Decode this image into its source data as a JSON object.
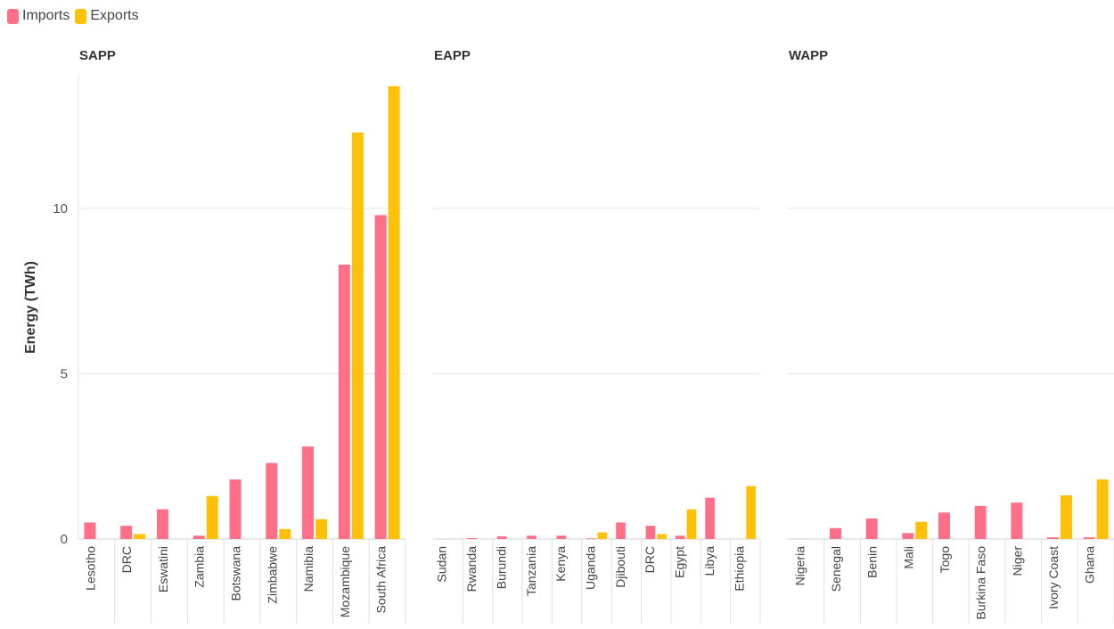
{
  "legend": {
    "imports_label": "Imports",
    "exports_label": "Exports"
  },
  "colors": {
    "imports": "#FF7088",
    "exports": "#FFC107",
    "grid": "#E6E6E6",
    "axis": "#D0D0D0"
  },
  "chart_data": {
    "type": "bar",
    "ylabel": "Energy (TWh)",
    "ylim": [
      0,
      14
    ],
    "yticks": [
      0,
      5,
      10
    ],
    "grid": true,
    "legend_position": "top-left",
    "series_names": [
      "Imports",
      "Exports"
    ],
    "panels": [
      {
        "title": "SAPP",
        "categories": [
          "Lesotho",
          "DRC",
          "Eswatini",
          "Zambia",
          "Botswana",
          "Zimbabwe",
          "Namibia",
          "Mozambique",
          "South Africa"
        ],
        "series": [
          {
            "name": "Imports",
            "values": [
              0.5,
              0.4,
              0.9,
              0.1,
              1.8,
              2.3,
              2.8,
              8.3,
              9.8
            ]
          },
          {
            "name": "Exports",
            "values": [
              0.0,
              0.15,
              0.0,
              1.3,
              0.0,
              0.3,
              0.6,
              12.3,
              13.7
            ]
          }
        ]
      },
      {
        "title": "EAPP",
        "categories": [
          "Sudan",
          "Rwanda",
          "Burundi",
          "Tanzania",
          "Kenya",
          "Uganda",
          "Djibouti",
          "DRC",
          "Egypt",
          "Libya",
          "Ethiopia"
        ],
        "series": [
          {
            "name": "Imports",
            "values": [
              0.0,
              0.03,
              0.08,
              0.1,
              0.1,
              0.02,
              0.5,
              0.4,
              0.1,
              1.25,
              0.0
            ]
          },
          {
            "name": "Exports",
            "values": [
              0.0,
              0.0,
              0.0,
              0.0,
              0.0,
              0.2,
              0.0,
              0.15,
              0.9,
              0.0,
              1.6
            ]
          }
        ]
      },
      {
        "title": "WAPP",
        "categories": [
          "Nigeria",
          "Senegal",
          "Benin",
          "Mali",
          "Togo",
          "Burkina Faso",
          "Niger",
          "Ivory Coast",
          "Ghana"
        ],
        "series": [
          {
            "name": "Imports",
            "values": [
              0.0,
              0.33,
              0.62,
              0.18,
              0.8,
              1.0,
              1.1,
              0.05,
              0.05
            ]
          },
          {
            "name": "Exports",
            "values": [
              0.0,
              0.0,
              0.0,
              0.52,
              0.0,
              0.0,
              0.0,
              1.32,
              1.8
            ]
          }
        ]
      }
    ]
  }
}
